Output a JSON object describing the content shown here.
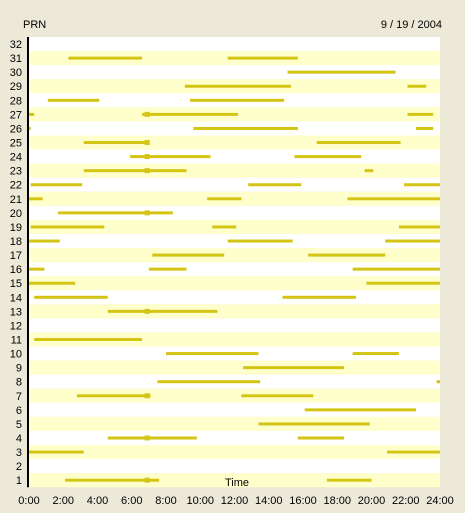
{
  "chart_data": {
    "type": "bar",
    "orientation": "horizontal-timeline",
    "title": "",
    "ylabel": "PRN",
    "xlabel": "Time",
    "date_label": "9 / 19 / 2004",
    "x_ticks": [
      "0:00",
      "2:00",
      "4:00",
      "6:00",
      "8:00",
      "10:00",
      "12:00",
      "14:00",
      "16:00",
      "18:00",
      "20:00",
      "22:00",
      "24:00"
    ],
    "xlim": [
      0,
      24
    ],
    "ylim": [
      1,
      32
    ],
    "colors": {
      "bar": "#d4c514",
      "stripe_light": "#ffffcc",
      "stripe_white": "#ffffff",
      "background": "#ece9d8"
    },
    "series": [
      {
        "prn": 32,
        "intervals": []
      },
      {
        "prn": 31,
        "intervals": [
          [
            2.3,
            6.6
          ],
          [
            11.6,
            15.7
          ]
        ]
      },
      {
        "prn": 30,
        "intervals": [
          [
            15.1,
            21.4
          ]
        ]
      },
      {
        "prn": 29,
        "intervals": [
          [
            9.1,
            15.3
          ],
          [
            22.1,
            23.2
          ]
        ]
      },
      {
        "prn": 28,
        "intervals": [
          [
            1.1,
            4.1
          ],
          [
            9.4,
            14.9
          ]
        ]
      },
      {
        "prn": 27,
        "intervals": [
          [
            0,
            0.3
          ],
          [
            6.6,
            12.2
          ],
          [
            22.1,
            23.6
          ]
        ],
        "markers": [
          6.9
        ]
      },
      {
        "prn": 26,
        "intervals": [
          [
            0,
            0.1
          ],
          [
            9.6,
            15.7
          ],
          [
            22.6,
            23.6
          ]
        ]
      },
      {
        "prn": 25,
        "intervals": [
          [
            3.2,
            6.9
          ],
          [
            16.8,
            21.7
          ]
        ],
        "markers": [
          6.9
        ]
      },
      {
        "prn": 24,
        "intervals": [
          [
            5.9,
            10.6
          ],
          [
            15.5,
            19.4
          ]
        ],
        "markers": [
          6.9
        ]
      },
      {
        "prn": 23,
        "intervals": [
          [
            3.2,
            9.2
          ],
          [
            19.6,
            20.1
          ]
        ],
        "markers": [
          6.9
        ]
      },
      {
        "prn": 22,
        "intervals": [
          [
            0.1,
            3.1
          ],
          [
            12.8,
            15.9
          ],
          [
            21.9,
            24
          ]
        ]
      },
      {
        "prn": 21,
        "intervals": [
          [
            0,
            0.8
          ],
          [
            10.4,
            12.4
          ],
          [
            18.6,
            24
          ]
        ]
      },
      {
        "prn": 20,
        "intervals": [
          [
            1.7,
            8.4
          ]
        ],
        "markers": [
          6.9
        ]
      },
      {
        "prn": 19,
        "intervals": [
          [
            0.1,
            4.4
          ],
          [
            10.7,
            12.1
          ],
          [
            21.6,
            24
          ]
        ]
      },
      {
        "prn": 18,
        "intervals": [
          [
            0,
            1.8
          ],
          [
            11.6,
            15.4
          ],
          [
            20.8,
            24
          ]
        ]
      },
      {
        "prn": 17,
        "intervals": [
          [
            7.2,
            11.4
          ],
          [
            16.3,
            20.8
          ]
        ]
      },
      {
        "prn": 16,
        "intervals": [
          [
            0,
            0.9
          ],
          [
            7.0,
            9.2
          ],
          [
            18.9,
            24
          ]
        ]
      },
      {
        "prn": 15,
        "intervals": [
          [
            0,
            2.7
          ],
          [
            19.7,
            24
          ]
        ]
      },
      {
        "prn": 14,
        "intervals": [
          [
            0.3,
            4.6
          ],
          [
            14.8,
            19.1
          ]
        ]
      },
      {
        "prn": 13,
        "intervals": [
          [
            4.6,
            11.0
          ]
        ],
        "markers": [
          6.9
        ]
      },
      {
        "prn": 12,
        "intervals": []
      },
      {
        "prn": 11,
        "intervals": [
          [
            0.3,
            6.6
          ]
        ]
      },
      {
        "prn": 10,
        "intervals": [
          [
            8.0,
            13.4
          ],
          [
            18.9,
            21.6
          ]
        ]
      },
      {
        "prn": 9,
        "intervals": [
          [
            12.5,
            18.4
          ]
        ]
      },
      {
        "prn": 8,
        "intervals": [
          [
            7.5,
            13.5
          ],
          [
            23.8,
            24
          ]
        ]
      },
      {
        "prn": 7,
        "intervals": [
          [
            2.8,
            7.1
          ],
          [
            12.4,
            16.6
          ]
        ],
        "markers": [
          6.9
        ]
      },
      {
        "prn": 6,
        "intervals": [
          [
            16.1,
            22.6
          ]
        ]
      },
      {
        "prn": 5,
        "intervals": [
          [
            13.4,
            19.9
          ]
        ]
      },
      {
        "prn": 4,
        "intervals": [
          [
            4.6,
            9.8
          ],
          [
            15.7,
            18.4
          ]
        ],
        "markers": [
          6.9
        ]
      },
      {
        "prn": 3,
        "intervals": [
          [
            0,
            3.2
          ],
          [
            20.9,
            24
          ]
        ]
      },
      {
        "prn": 2,
        "intervals": []
      },
      {
        "prn": 1,
        "intervals": [
          [
            2.1,
            7.6
          ],
          [
            17.4,
            20.0
          ]
        ],
        "markers": [
          6.9
        ]
      }
    ]
  }
}
